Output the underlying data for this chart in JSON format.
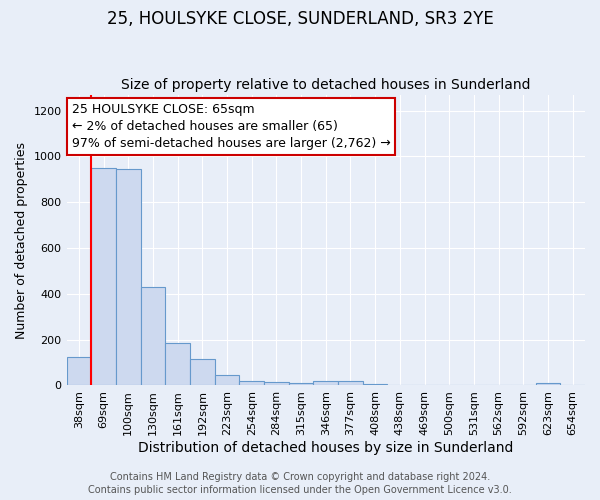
{
  "title": "25, HOULSYKE CLOSE, SUNDERLAND, SR3 2YE",
  "subtitle": "Size of property relative to detached houses in Sunderland",
  "xlabel": "Distribution of detached houses by size in Sunderland",
  "ylabel": "Number of detached properties",
  "categories": [
    "38sqm",
    "69sqm",
    "100sqm",
    "130sqm",
    "161sqm",
    "192sqm",
    "223sqm",
    "254sqm",
    "284sqm",
    "315sqm",
    "346sqm",
    "377sqm",
    "408sqm",
    "438sqm",
    "469sqm",
    "500sqm",
    "531sqm",
    "562sqm",
    "592sqm",
    "623sqm",
    "654sqm"
  ],
  "values": [
    125,
    950,
    945,
    430,
    185,
    115,
    47,
    20,
    14,
    10,
    18,
    18,
    5,
    0,
    0,
    0,
    0,
    0,
    0,
    10,
    0
  ],
  "bar_color": "#cdd9ef",
  "bar_edge_color": "#6699cc",
  "red_line_index": 1,
  "annotation_text": "25 HOULSYKE CLOSE: 65sqm\n← 2% of detached houses are smaller (65)\n97% of semi-detached houses are larger (2,762) →",
  "annotation_box_color": "#ffffff",
  "annotation_box_edge_color": "#cc0000",
  "ylim": [
    0,
    1270
  ],
  "yticks": [
    0,
    200,
    400,
    600,
    800,
    1000,
    1200
  ],
  "background_color": "#e8eef8",
  "grid_color": "#ffffff",
  "footer": "Contains HM Land Registry data © Crown copyright and database right 2024.\nContains public sector information licensed under the Open Government Licence v3.0.",
  "title_fontsize": 12,
  "subtitle_fontsize": 10,
  "ylabel_fontsize": 9,
  "xlabel_fontsize": 10,
  "tick_fontsize": 8,
  "annotation_fontsize": 9,
  "footer_fontsize": 7
}
